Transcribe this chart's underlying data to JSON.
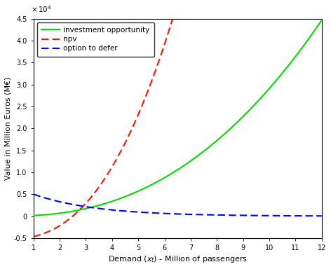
{
  "x_min": 1,
  "x_max": 12,
  "y_min": -5000,
  "y_max": 45000,
  "xlabel_plain": "Demand (x",
  "xlabel_sub": "t",
  "xlabel_end": ") - Million of passengers",
  "ylabel": "Value in Million Euros (M€)",
  "legend_labels": [
    "investment opportunity",
    "npv",
    "option to defer"
  ],
  "line_colors": [
    "#00dd00",
    "#ff1100",
    "#0000ff"
  ],
  "background_color": "#ffffff",
  "inv_opp_A": 130.0,
  "inv_opp_beta": 2.35,
  "npv_a": 550.0,
  "npv_b": 2.45,
  "npv_c": -5200.0,
  "option_C": 5000,
  "option_k": 0.42
}
